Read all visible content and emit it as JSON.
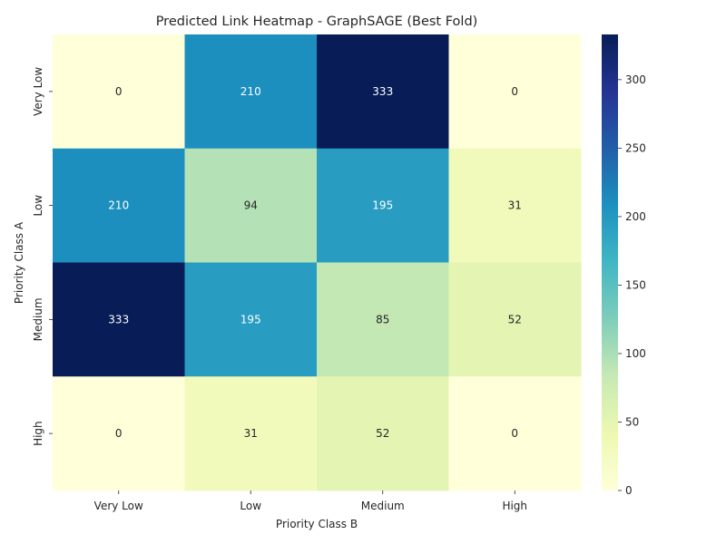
{
  "chart_data": {
    "type": "heatmap",
    "title": "Predicted Link Heatmap - GraphSAGE (Best Fold)",
    "xlabel": "Priority Class B",
    "ylabel": "Priority Class A",
    "x_categories": [
      "Very Low",
      "Low",
      "Medium",
      "High"
    ],
    "y_categories": [
      "Very Low",
      "Low",
      "Medium",
      "High"
    ],
    "values": [
      [
        0,
        210,
        333,
        0
      ],
      [
        210,
        94,
        195,
        31
      ],
      [
        333,
        195,
        85,
        52
      ],
      [
        0,
        31,
        52,
        0
      ]
    ],
    "colormap": "YlGnBu",
    "colorbar": {
      "min": 0,
      "max": 333,
      "ticks": [
        0,
        50,
        100,
        150,
        200,
        250,
        300
      ]
    },
    "annotations": true
  }
}
